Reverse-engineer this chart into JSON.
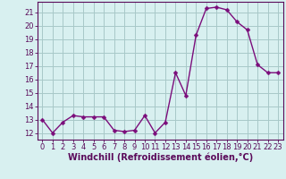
{
  "x": [
    0,
    1,
    2,
    3,
    4,
    5,
    6,
    7,
    8,
    9,
    10,
    11,
    12,
    13,
    14,
    15,
    16,
    17,
    18,
    19,
    20,
    21,
    22,
    23
  ],
  "y": [
    13,
    12,
    12.8,
    13.3,
    13.2,
    13.2,
    13.2,
    12.2,
    12.1,
    12.2,
    13.3,
    12.0,
    12.8,
    16.5,
    14.8,
    19.3,
    21.3,
    21.4,
    21.2,
    20.3,
    19.7,
    17.1,
    16.5,
    16.5
  ],
  "line_color": "#7b0d7b",
  "marker": "D",
  "markersize": 2.5,
  "linewidth": 1.0,
  "bg_color": "#d8f0f0",
  "grid_color": "#a8c8c8",
  "xlabel": "Windchill (Refroidissement éolien,°C)",
  "xlabel_fontsize": 7,
  "xlim": [
    -0.5,
    23.5
  ],
  "ylim": [
    11.5,
    21.8
  ],
  "xticks": [
    0,
    1,
    2,
    3,
    4,
    5,
    6,
    7,
    8,
    9,
    10,
    11,
    12,
    13,
    14,
    15,
    16,
    17,
    18,
    19,
    20,
    21,
    22,
    23
  ],
  "yticks": [
    12,
    13,
    14,
    15,
    16,
    17,
    18,
    19,
    20,
    21
  ],
  "tick_fontsize": 6,
  "axis_color": "#5a0a5a",
  "spine_color": "#5a0a5a"
}
